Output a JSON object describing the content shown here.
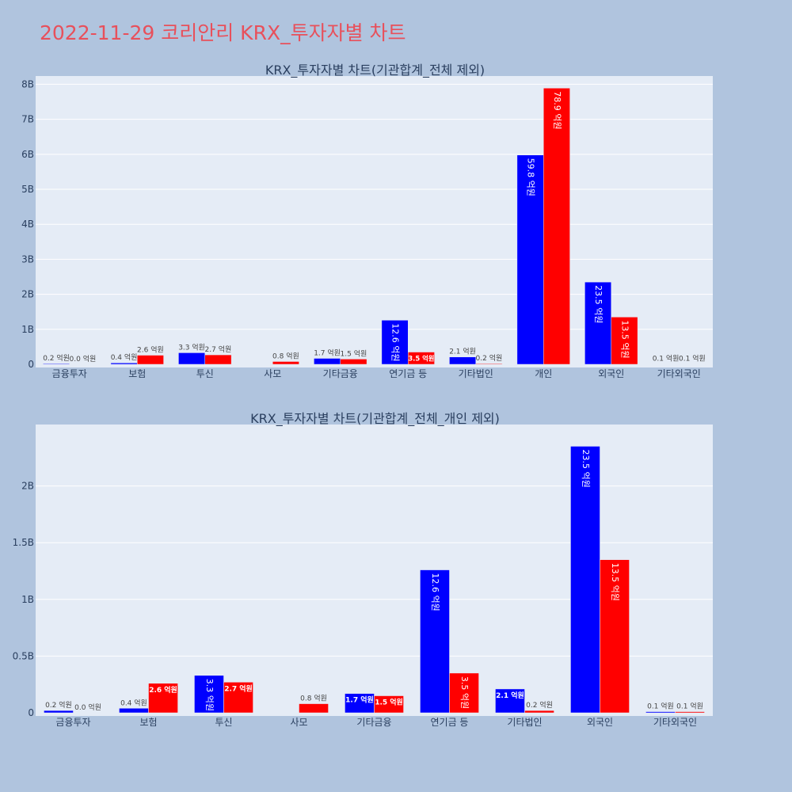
{
  "title": "2022-11-29 코리안리 KRX_투자자별 차트",
  "colors": {
    "buy": "#0000ff",
    "sell": "#ff0000",
    "plot_bg": "#e5ecf6",
    "page_bg": "#b0c4de",
    "title": "#e8505b"
  },
  "chart_data": [
    {
      "type": "bar",
      "title": "KRX_투자자별 차트(기관합계_전체 제외)",
      "categories": [
        "금융투자",
        "보험",
        "투신",
        "사모",
        "기타금융",
        "연기금 등",
        "기타법인",
        "개인",
        "외국인",
        "기타외국인"
      ],
      "series": [
        {
          "color": "#0000ff",
          "values": [
            0.02,
            0.04,
            0.33,
            0.0,
            0.17,
            1.26,
            0.21,
            5.98,
            2.35,
            0.01
          ],
          "labels": [
            "0.2 억원",
            "0.4 억원",
            "3.3 억원",
            "",
            "1.7 억원",
            "12.6 억원",
            "2.1 억원",
            "59.8 억원",
            "23.5 억원",
            "0.1 억원"
          ]
        },
        {
          "color": "#ff0000",
          "values": [
            0.0,
            0.26,
            0.27,
            0.08,
            0.15,
            0.35,
            0.02,
            7.89,
            1.35,
            0.01
          ],
          "labels": [
            "0.0 억원",
            "2.6 억원",
            "2.7 억원",
            "0.8 억원",
            "1.5 억원",
            "3.5 억원",
            "0.2 억원",
            "78.9 억원",
            "13.5 억원",
            "0.1 억원"
          ]
        }
      ],
      "ylim": [
        0,
        8.1
      ],
      "yticks": [
        0,
        1,
        2,
        3,
        4,
        5,
        6,
        7,
        8
      ],
      "ytick_labels": [
        "0",
        "1B",
        "2B",
        "3B",
        "4B",
        "5B",
        "6B",
        "7B",
        "8B"
      ],
      "grid": true
    },
    {
      "type": "bar",
      "title": "KRX_투자자별 차트(기관합계_전체_개인 제외)",
      "categories": [
        "금융투자",
        "보험",
        "투신",
        "사모",
        "기타금융",
        "연기금 등",
        "기타법인",
        "외국인",
        "기타외국인"
      ],
      "series": [
        {
          "color": "#0000ff",
          "values": [
            0.02,
            0.04,
            0.33,
            0.0,
            0.17,
            1.26,
            0.21,
            2.35,
            0.01
          ],
          "labels": [
            "0.2 억원",
            "0.4 억원",
            "3.3 억원",
            "",
            "1.7 억원",
            "12.6 억원",
            "2.1 억원",
            "23.5 억원",
            "0.1 억원"
          ]
        },
        {
          "color": "#ff0000",
          "values": [
            0.0,
            0.26,
            0.27,
            0.08,
            0.15,
            0.35,
            0.02,
            1.35,
            0.01
          ],
          "labels": [
            "0.0 억원",
            "2.6 억원",
            "2.7 억원",
            "0.8 억원",
            "1.5 억원",
            "3.5 억원",
            "0.2 억원",
            "13.5 억원",
            "0.1 억원"
          ]
        }
      ],
      "ylim": [
        0,
        2.5
      ],
      "yticks": [
        0,
        0.5,
        1,
        1.5,
        2
      ],
      "ytick_labels": [
        "0",
        "0.5B",
        "1B",
        "1.5B",
        "2B"
      ],
      "grid": true
    }
  ]
}
